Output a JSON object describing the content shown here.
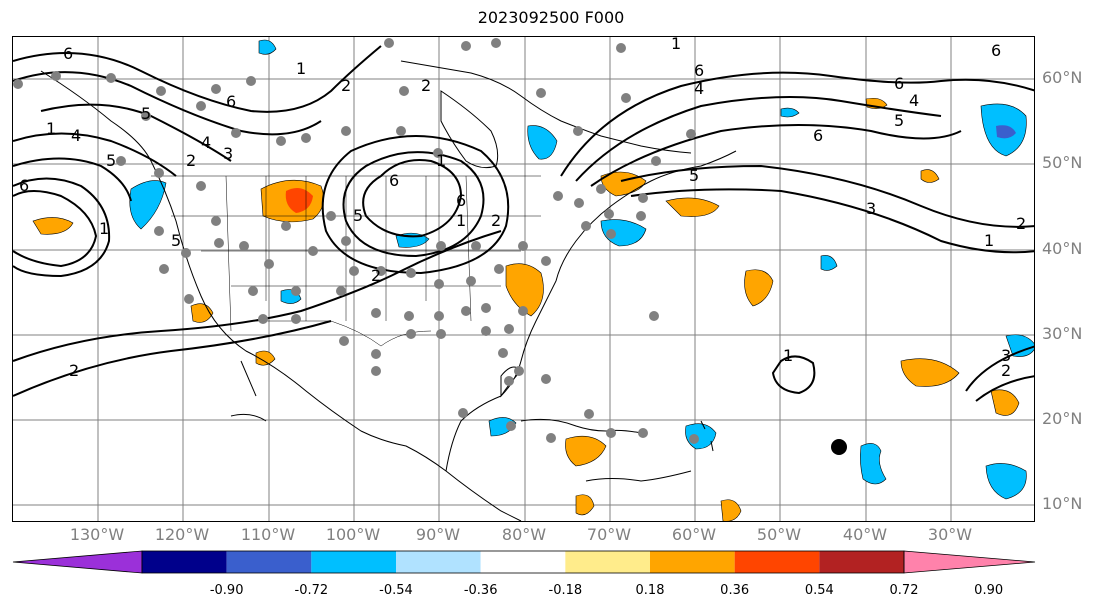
{
  "title": "2023092500 F000",
  "lat_labels": [
    "60°N",
    "50°N",
    "40°N",
    "30°N",
    "20°N",
    "10°N"
  ],
  "lon_labels": [
    "130°W",
    "120°W",
    "110°W",
    "100°W",
    "90°W",
    "80°W",
    "70°W",
    "60°W",
    "50°W",
    "40°W",
    "30°W"
  ],
  "contour_labels": [
    "6",
    "1",
    "2",
    "6",
    "4",
    "5",
    "1",
    "6",
    "5",
    "4",
    "3",
    "2",
    "6",
    "1",
    "6",
    "5",
    "1",
    "2",
    "6",
    "3",
    "2",
    "1",
    "2",
    "1",
    "4",
    "6",
    "5",
    "6",
    "4",
    "5",
    "3",
    "2",
    "1",
    "6",
    "5",
    "1",
    "2",
    "2"
  ],
  "colorbar": {
    "colors": [
      "#9b30d9",
      "#00008b",
      "#3a5fcd",
      "#00bfff",
      "#b0e2ff",
      "#ffffff",
      "#ffec8b",
      "#ffa500",
      "#ff4500",
      "#b22222",
      "#ff82ab"
    ],
    "tick_labels": [
      "-0.90",
      "-0.72",
      "-0.54",
      "-0.36",
      "-0.18",
      "0.18",
      "0.36",
      "0.54",
      "0.72",
      "0.90"
    ]
  },
  "colors": {
    "coastline": "#000000",
    "gridline": "#808080",
    "station": "#808080",
    "storm_marker": "#000000"
  }
}
